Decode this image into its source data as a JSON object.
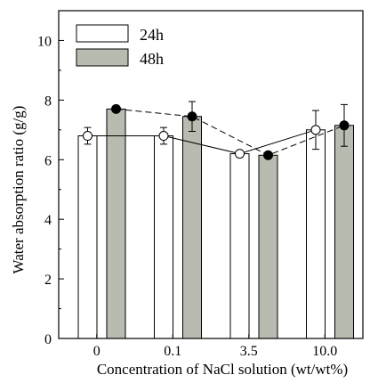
{
  "chart_data": {
    "type": "bar",
    "xlabel": "Concentration of NaCl solution (wt/wt%)",
    "ylabel": "Water absorption ratio (g/g)",
    "ylim": [
      0,
      11
    ],
    "yticks": [
      0,
      2,
      4,
      6,
      8,
      10
    ],
    "categories": [
      "0",
      "0.1",
      "3.5",
      "10.0"
    ],
    "series": [
      {
        "name": "24h",
        "values": [
          6.8,
          6.8,
          6.2,
          7.0
        ],
        "errors": [
          0.28,
          0.28,
          0.0,
          0.65
        ],
        "bar_color": "#ffffff",
        "marker": "open-circle",
        "line_style": "solid"
      },
      {
        "name": "48h",
        "values": [
          7.7,
          7.45,
          6.15,
          7.15
        ],
        "errors": [
          0.0,
          0.5,
          0.0,
          0.7
        ],
        "bar_color": "#b8bcb0",
        "marker": "filled-circle",
        "line_style": "dashed"
      }
    ],
    "legend_position": "top-left",
    "grid": false
  }
}
